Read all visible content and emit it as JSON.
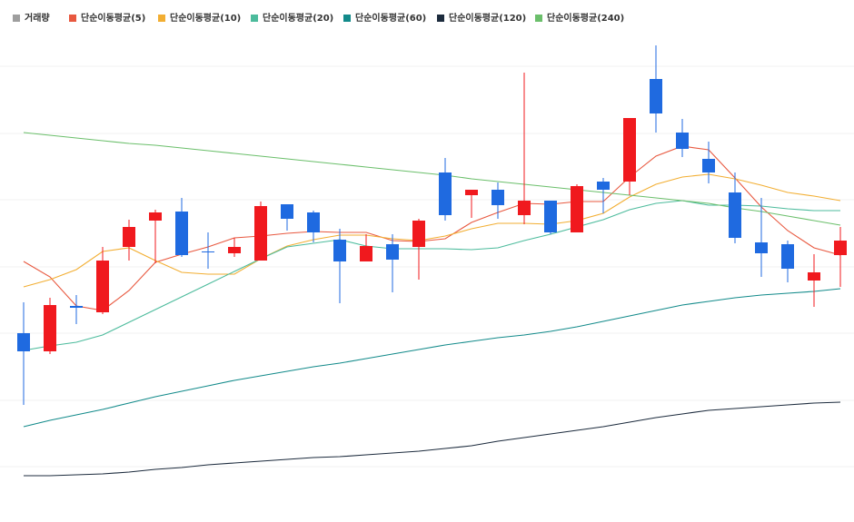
{
  "chart_data": {
    "type": "candlestick",
    "ylim": [
      0,
      575
    ],
    "gridlines": [
      502,
      428,
      355,
      281,
      208,
      134,
      61
    ],
    "up_color": "#f0191e",
    "down_color": "#1f6ae0",
    "volume_label": "거래량",
    "volume_color": "#9e9e9e",
    "open": [
      208,
      188,
      238,
      231,
      303,
      332,
      342,
      298,
      296,
      288,
      350,
      341,
      311,
      287,
      306,
      303,
      385,
      360,
      366,
      338,
      354,
      319,
      375,
      375,
      488,
      429,
      400,
      363,
      308,
      306,
      266,
      294
    ],
    "high": [
      242,
      247,
      250,
      303,
      333,
      344,
      357,
      319,
      313,
      353,
      350,
      343,
      323,
      317,
      317,
      334,
      401,
      366,
      374,
      495,
      354,
      372,
      379,
      445,
      525,
      444,
      419,
      385,
      357,
      310,
      295,
      325
    ],
    "low": [
      129,
      185,
      218,
      229,
      288,
      285,
      292,
      279,
      292,
      288,
      321,
      308,
      241,
      287,
      253,
      267,
      332,
      335,
      334,
      328,
      317,
      319,
      340,
      360,
      429,
      402,
      373,
      307,
      270,
      264,
      237,
      259
    ],
    "close": [
      188,
      239,
      236,
      288,
      325,
      341,
      294,
      297,
      303,
      348,
      334,
      319,
      287,
      304,
      289,
      332,
      338,
      366,
      349,
      354,
      319,
      370,
      366,
      445,
      450,
      411,
      385,
      313,
      296,
      279,
      275,
      310
    ],
    "series": [
      {
        "name": "단순이동평균(5)",
        "color": "#e8583f",
        "values": [
          287,
          270,
          238,
          233,
          255,
          286,
          295,
          303,
          313,
          315,
          318,
          320,
          319,
          319,
          310,
          309,
          312,
          330,
          341,
          351,
          350,
          353,
          353,
          380,
          403,
          414,
          410,
          379,
          347,
          321,
          302,
          294
        ]
      },
      {
        "name": "단순이동평균(10)",
        "color": "#f2ae32",
        "values": [
          259,
          267,
          278,
          298,
          302,
          288,
          275,
          273,
          273,
          290,
          304,
          311,
          316,
          316,
          312,
          310,
          315,
          323,
          329,
          329,
          328,
          332,
          340,
          358,
          372,
          380,
          383,
          378,
          371,
          363,
          359,
          354
        ]
      },
      {
        "name": "단순이동평균(20)",
        "color": "#4cbb9c",
        "values": [
          189,
          194,
          198,
          206,
          220,
          234,
          248,
          262,
          276,
          290,
          303,
          307,
          311,
          304,
          301,
          301,
          301,
          300,
          302,
          310,
          317,
          325,
          333,
          344,
          351,
          354,
          349,
          349,
          348,
          345,
          343,
          343
        ]
      },
      {
        "name": "단순이동평균(60)",
        "color": "#128a8a",
        "values": [
          105,
          112,
          118,
          124,
          131,
          138,
          144,
          150,
          156,
          161,
          166,
          171,
          175,
          180,
          185,
          190,
          195,
          199,
          203,
          206,
          210,
          215,
          221,
          227,
          233,
          239,
          243,
          247,
          250,
          252,
          254,
          257
        ]
      },
      {
        "name": "단순이동평균(120)",
        "color": "#1c2b3d",
        "values": [
          51,
          51,
          52,
          53,
          55,
          58,
          60,
          63,
          65,
          67,
          69,
          71,
          72,
          74,
          76,
          78,
          81,
          84,
          89,
          93,
          97,
          101,
          105,
          110,
          115,
          119,
          123,
          125,
          127,
          129,
          131,
          132
        ]
      },
      {
        "name": "단순이동평균(240)",
        "color": "#6bbf6b",
        "values": [
          429,
          426,
          423,
          420,
          417,
          415,
          412,
          409,
          406,
          403,
          400,
          397,
          394,
          391,
          388,
          385,
          382,
          378,
          375,
          372,
          369,
          366,
          363,
          360,
          357,
          354,
          351,
          346,
          342,
          337,
          332,
          327
        ]
      }
    ]
  }
}
